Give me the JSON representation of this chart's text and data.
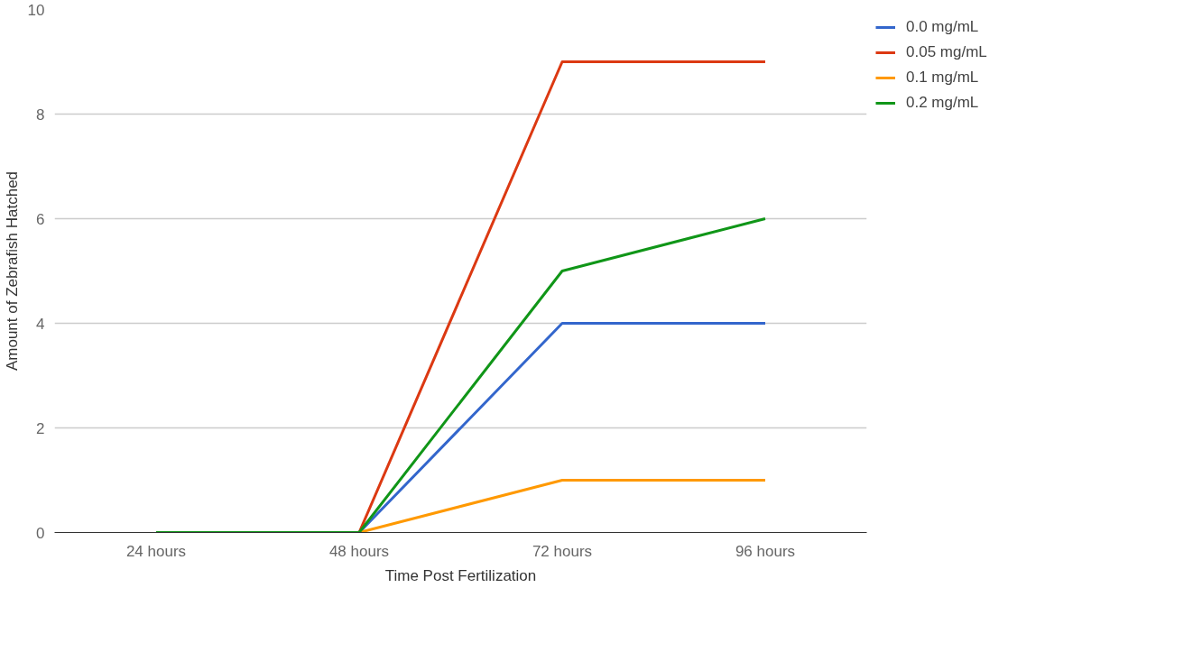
{
  "chart_data": {
    "type": "line",
    "xlabel": "Time Post Fertilization",
    "ylabel": "Amount of Zebrafish Hatched",
    "categories": [
      "24 hours",
      "48 hours",
      "72 hours",
      "96 hours"
    ],
    "series": [
      {
        "name": "0.0 mg/mL",
        "color": "#3366cc",
        "values": [
          0,
          0,
          4,
          4
        ]
      },
      {
        "name": "0.05 mg/mL",
        "color": "#dc3912",
        "values": [
          0,
          0,
          9,
          9
        ]
      },
      {
        "name": "0.1 mg/mL",
        "color": "#ff9900",
        "values": [
          0,
          0,
          1,
          1
        ]
      },
      {
        "name": "0.2 mg/mL",
        "color": "#109618",
        "values": [
          0,
          0,
          5,
          6
        ]
      }
    ],
    "ylim": [
      0,
      10
    ],
    "yticks": [
      0,
      2,
      4,
      6,
      8,
      10
    ],
    "grid": "y",
    "legend": "top right",
    "marker": "none",
    "line_style": "solid"
  }
}
